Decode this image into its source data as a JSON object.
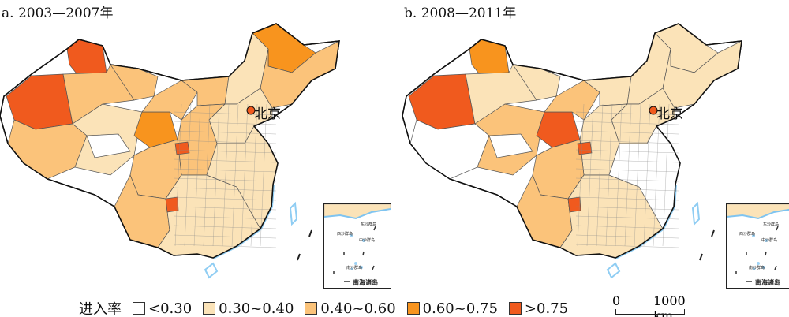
{
  "panels": [
    {
      "title": "a. 2003—2007年",
      "city": "北京",
      "regions": {
        "xj_west": 4,
        "xj_north": 4,
        "xj_mid": 2,
        "xj_east": 2,
        "tibet_w": 2,
        "tibet_e": 1,
        "qinghai_w": 0,
        "qinghai_e": 3,
        "gansu": 2,
        "inner_mongolia_w": 2,
        "inner_mongolia_e": 1,
        "heilongjiang": 3,
        "northeast": 2,
        "north_china": 1,
        "central": 2,
        "sichuan": 2,
        "yunnan": 2,
        "south": 1,
        "east": 1,
        "hotspot1": 4,
        "hotspot2": 4
      }
    },
    {
      "title": "b. 2008—2011年",
      "city": "北京",
      "regions": {
        "xj_west": 4,
        "xj_north": 3,
        "xj_mid": 1,
        "xj_east": 1,
        "tibet_w": 0,
        "tibet_e": 2,
        "qinghai_w": 0,
        "qinghai_e": 4,
        "gansu": 2,
        "inner_mongolia_w": 1,
        "inner_mongolia_e": 1,
        "heilongjiang": 1,
        "northeast": 1,
        "north_china": 1,
        "central": 1,
        "sichuan": 2,
        "yunnan": 2,
        "south": 1,
        "east": 0,
        "hotspot1": 4,
        "hotspot2": 4
      }
    }
  ],
  "inset": {
    "labels": [
      "东沙群岛",
      "西沙群岛",
      "中沙群岛",
      "南沙群岛",
      "南海诸岛"
    ]
  },
  "legend": {
    "title": "进入率",
    "items": [
      {
        "label": "<0.30",
        "color": "#ffffff"
      },
      {
        "label": "0.30~0.40",
        "color": "#fbe3b8"
      },
      {
        "label": "0.40~0.60",
        "color": "#fbc37a"
      },
      {
        "label": "0.60~0.75",
        "color": "#f8941e"
      },
      {
        "label": ">0.75",
        "color": "#f05a1e"
      }
    ]
  },
  "scale_bar": {
    "start": "0",
    "end": "1000 km"
  }
}
